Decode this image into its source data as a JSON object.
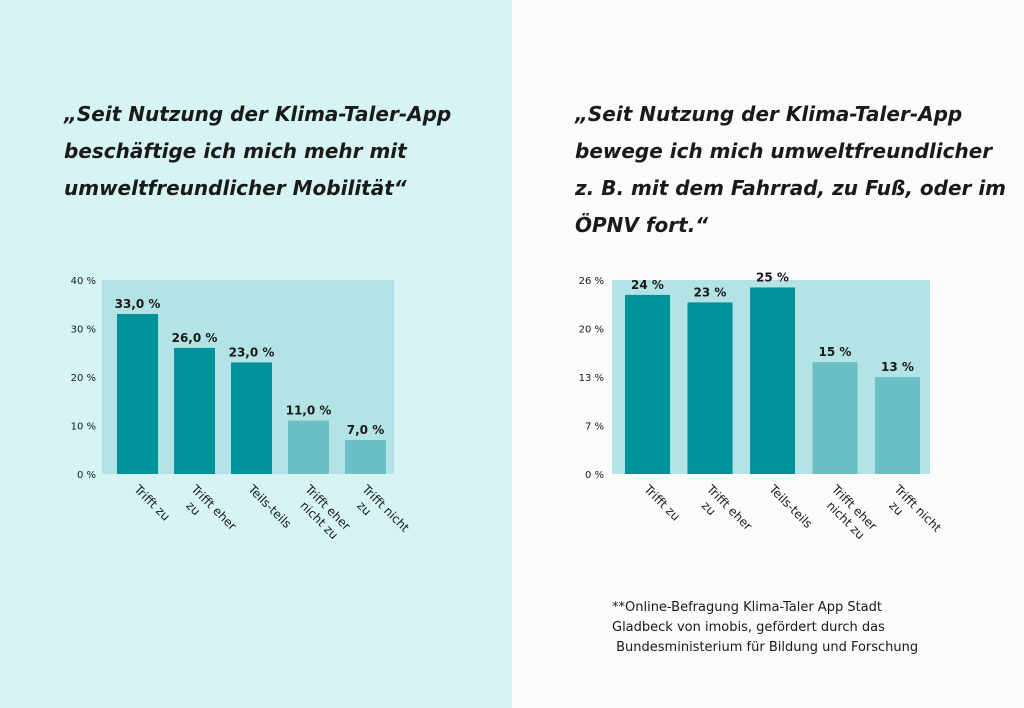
{
  "panels": {
    "left": {
      "quote_lines": [
        "„Seit Nutzung der Klima-Taler-App",
        "beschäftige ich mich mehr mit",
        "umweltfreundlicher Mobilität“"
      ]
    },
    "right": {
      "quote_lines": [
        "„Seit Nutzung der Klima-Taler-App",
        "bewege ich mich umweltfreundlicher",
        "z. B. mit dem Fahrrad, zu Fuß, oder im",
        "ÖPNV fort.“"
      ],
      "footnote_lines": [
        "**Online-Befragung Klima-Taler App Stadt",
        "Gladbeck von imobis, gefördert durch das",
        " Bundesministerium für Bildung und Forschung"
      ]
    }
  },
  "colors": {
    "bg_left": "#d6f4f4",
    "plot_bg": "#b3e3e5",
    "bar_dark": "#00929a",
    "bar_light": "#6cbfc4",
    "text": "#1a1a1a"
  },
  "chart_data": [
    {
      "type": "bar",
      "title": "",
      "categories": [
        "Trifft zu",
        "Trifft eher zu",
        "Teils-teils",
        "Trifft eher nicht zu",
        "Trifft nicht zu"
      ],
      "category_label_lines": [
        [
          "Trifft zu"
        ],
        [
          "Trifft eher",
          "zu"
        ],
        [
          "Teils-teils"
        ],
        [
          "Trifft eher",
          "nicht zu"
        ],
        [
          "Trifft nicht",
          "zu"
        ]
      ],
      "values": [
        33.0,
        26.0,
        23.0,
        11.0,
        7.0
      ],
      "data_labels": [
        "33,0 %",
        "26,0 %",
        "23,0 %",
        "11,0 %",
        "7,0 %"
      ],
      "bar_shades": [
        "dark",
        "dark",
        "dark",
        "light",
        "light"
      ],
      "ylim": [
        0,
        40
      ],
      "yticks": [
        0,
        10,
        20,
        30,
        40
      ],
      "ytick_labels": [
        "0 %",
        "10 %",
        "20 %",
        "30 %",
        "40 %"
      ],
      "xlabel": "",
      "ylabel": "",
      "grid": false
    },
    {
      "type": "bar",
      "title": "",
      "categories": [
        "Trifft zu",
        "Trifft eher zu",
        "Teils-teils",
        "Trifft eher nicht zu",
        "Trifft nicht zu"
      ],
      "category_label_lines": [
        [
          "Trifft zu"
        ],
        [
          "Trifft eher",
          "zu"
        ],
        [
          "Teils-teils"
        ],
        [
          "Trifft eher",
          "nicht zu"
        ],
        [
          "Trifft nicht",
          "zu"
        ]
      ],
      "values": [
        24,
        23,
        25,
        15,
        13
      ],
      "data_labels": [
        "24 %",
        "23 %",
        "25 %",
        "15 %",
        "13 %"
      ],
      "bar_shades": [
        "dark",
        "dark",
        "dark",
        "light",
        "light"
      ],
      "ylim": [
        0,
        26
      ],
      "yticks": [
        0,
        6.5,
        13,
        19.5,
        26
      ],
      "ytick_labels": [
        "0 %",
        "7 %",
        "13 %",
        "20 %",
        "26 %"
      ],
      "xlabel": "",
      "ylabel": "",
      "grid": false
    }
  ]
}
